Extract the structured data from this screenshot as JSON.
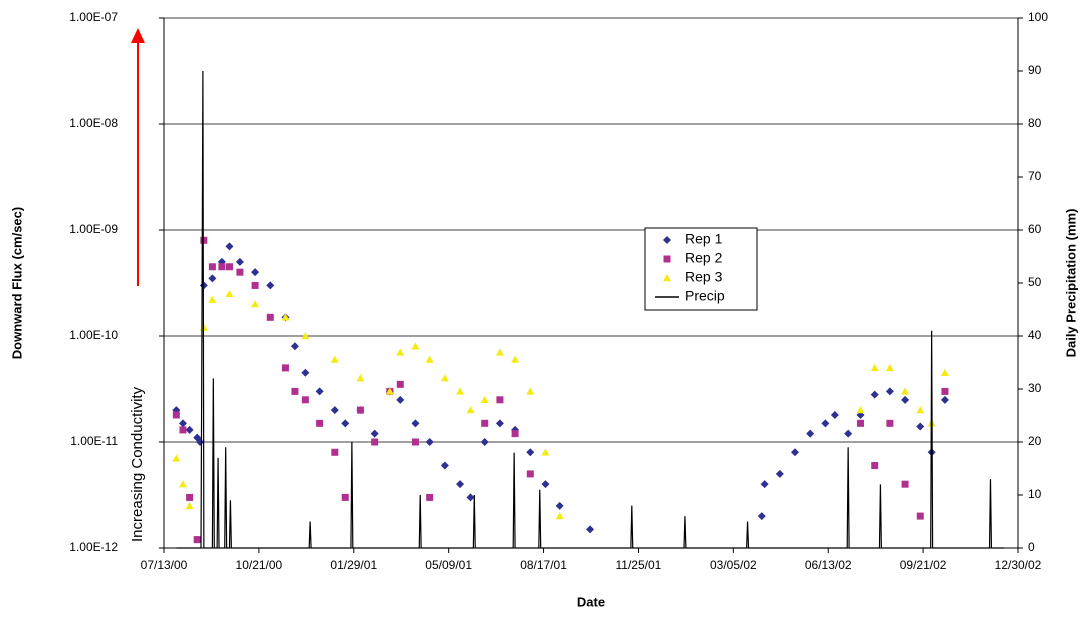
{
  "chart_data": {
    "type": "scatter",
    "xlabel": "Date",
    "ylabel": "Downward Flux (cm/sec)",
    "y2label": "Daily Precipitation (mm)",
    "annotation": {
      "text": "Increasing Conductivity",
      "color": "#ff0000"
    },
    "ylog": true,
    "grid": true,
    "legend": "center",
    "xlim": [
      "2000-07-13",
      "2002-12-30"
    ],
    "xticks": [
      {
        "value": "2000-07-13",
        "label": "07/13/00"
      },
      {
        "value": "2000-10-21",
        "label": "10/21/00"
      },
      {
        "value": "2001-01-29",
        "label": "01/29/01"
      },
      {
        "value": "2001-05-09",
        "label": "05/09/01"
      },
      {
        "value": "2001-08-17",
        "label": "08/17/01"
      },
      {
        "value": "2001-11-25",
        "label": "11/25/01"
      },
      {
        "value": "2002-03-05",
        "label": "03/05/02"
      },
      {
        "value": "2002-06-13",
        "label": "06/13/02"
      },
      {
        "value": "2002-09-21",
        "label": "09/21/02"
      },
      {
        "value": "2002-12-30",
        "label": "12/30/02"
      }
    ],
    "ylim": [
      1e-12,
      1e-07
    ],
    "yticks": [
      {
        "value": 1e-12,
        "label": "1.00E-12"
      },
      {
        "value": 1e-11,
        "label": "1.00E-11"
      },
      {
        "value": 1e-10,
        "label": "1.00E-10"
      },
      {
        "value": 1e-09,
        "label": "1.00E-09"
      },
      {
        "value": 1e-08,
        "label": "1.00E-08"
      },
      {
        "value": 1e-07,
        "label": "1.00E-07"
      }
    ],
    "y2lim": [
      0,
      100
    ],
    "y2ticks": [
      0,
      10,
      20,
      30,
      40,
      50,
      60,
      70,
      80,
      90,
      100
    ],
    "series": [
      {
        "name": "Rep 1",
        "color": "#2e3192",
        "marker": "diamond",
        "x": [
          "2000-07-26",
          "2000-08-02",
          "2000-08-09",
          "2000-08-17",
          "2000-08-20",
          "2000-08-24",
          "2000-09-02",
          "2000-09-12",
          "2000-09-20",
          "2000-10-01",
          "2000-10-17",
          "2000-11-02",
          "2000-11-18",
          "2000-11-28",
          "2000-12-09",
          "2000-12-24",
          "2001-01-09",
          "2001-01-20",
          "2001-02-05",
          "2001-02-20",
          "2001-03-08",
          "2001-03-19",
          "2001-04-04",
          "2001-04-19",
          "2001-05-05",
          "2001-05-21",
          "2001-06-01",
          "2001-06-16",
          "2001-07-02",
          "2001-07-18",
          "2001-08-03",
          "2001-08-19",
          "2001-09-03",
          "2001-10-05",
          "2002-04-04",
          "2002-04-07",
          "2002-04-23",
          "2002-05-09",
          "2002-05-25",
          "2002-06-10",
          "2002-06-20",
          "2002-07-04",
          "2002-07-17",
          "2002-08-01",
          "2002-08-17",
          "2002-09-02",
          "2002-09-18",
          "2002-09-30",
          "2002-10-14"
        ],
        "values": [
          2e-11,
          1.5e-11,
          1.3e-11,
          1.1e-11,
          1e-11,
          3e-10,
          3.5e-10,
          5e-10,
          7e-10,
          5e-10,
          4e-10,
          3e-10,
          1.5e-10,
          8e-11,
          4.5e-11,
          3e-11,
          2e-11,
          1.5e-11,
          2e-11,
          1.2e-11,
          3e-11,
          2.5e-11,
          1.5e-11,
          1e-11,
          6e-12,
          4e-12,
          3e-12,
          1e-11,
          1.5e-11,
          1.3e-11,
          8e-12,
          4e-12,
          2.5e-12,
          1.5e-12,
          2e-12,
          4e-12,
          5e-12,
          8e-12,
          1.2e-11,
          1.5e-11,
          1.8e-11,
          1.2e-11,
          1.8e-11,
          2.8e-11,
          3e-11,
          2.5e-11,
          1.4e-11,
          8e-12,
          2.5e-11
        ]
      },
      {
        "name": "Rep 2",
        "color": "#b0308f",
        "marker": "square",
        "x": [
          "2000-07-26",
          "2000-08-02",
          "2000-08-09",
          "2000-08-17",
          "2000-08-24",
          "2000-09-02",
          "2000-09-12",
          "2000-09-20",
          "2000-10-01",
          "2000-10-17",
          "2000-11-02",
          "2000-11-18",
          "2000-11-28",
          "2000-12-09",
          "2000-12-24",
          "2001-01-09",
          "2001-01-20",
          "2001-02-05",
          "2001-02-20",
          "2001-03-08",
          "2001-03-19",
          "2001-04-04",
          "2001-04-19",
          "2001-06-16",
          "2001-07-02",
          "2001-07-18",
          "2001-08-03",
          "2002-07-17",
          "2002-08-01",
          "2002-08-17",
          "2002-09-02",
          "2002-09-18",
          "2002-10-14"
        ],
        "values": [
          1.8e-11,
          1.3e-11,
          3e-12,
          1.2e-12,
          8e-10,
          4.5e-10,
          4.5e-10,
          4.5e-10,
          4e-10,
          3e-10,
          1.5e-10,
          5e-11,
          3e-11,
          2.5e-11,
          1.5e-11,
          8e-12,
          3e-12,
          2e-11,
          1e-11,
          3e-11,
          3.5e-11,
          1e-11,
          3e-12,
          1.5e-11,
          2.5e-11,
          1.2e-11,
          5e-12,
          1.5e-11,
          6e-12,
          1.5e-11,
          4e-12,
          2e-12,
          3e-11
        ]
      },
      {
        "name": "Rep 3",
        "color": "#f5ea14",
        "marker": "triangle",
        "x": [
          "2000-07-26",
          "2000-08-02",
          "2000-08-09",
          "2000-08-24",
          "2000-09-02",
          "2000-09-20",
          "2000-10-17",
          "2000-11-18",
          "2000-12-09",
          "2001-01-09",
          "2001-02-05",
          "2001-03-08",
          "2001-03-19",
          "2001-04-04",
          "2001-04-19",
          "2001-05-05",
          "2001-05-21",
          "2001-06-01",
          "2001-06-16",
          "2001-07-02",
          "2001-07-18",
          "2001-08-03",
          "2001-08-19",
          "2001-09-03",
          "2002-07-17",
          "2002-08-01",
          "2002-08-17",
          "2002-09-02",
          "2002-09-18",
          "2002-09-30",
          "2002-10-14"
        ],
        "values": [
          7e-12,
          4e-12,
          2.5e-12,
          1.2e-10,
          2.2e-10,
          2.5e-10,
          2e-10,
          1.5e-10,
          1e-10,
          6e-11,
          4e-11,
          3e-11,
          7e-11,
          8e-11,
          6e-11,
          4e-11,
          3e-11,
          2e-11,
          2.5e-11,
          7e-11,
          6e-11,
          3e-11,
          8e-12,
          2e-12,
          2e-11,
          5e-11,
          5e-11,
          3e-11,
          2e-11,
          1.5e-11,
          4.5e-11
        ]
      },
      {
        "name": "Precip",
        "color": "#000000",
        "marker": "line",
        "axis": "y2",
        "x": [
          "2000-07-26",
          "2000-08-21",
          "2000-08-22",
          "2000-08-23",
          "2000-08-24",
          "2000-09-02",
          "2000-09-03",
          "2000-09-04",
          "2000-09-07",
          "2000-09-08",
          "2000-09-09",
          "2000-09-15",
          "2000-09-16",
          "2000-09-17",
          "2000-09-20",
          "2000-09-21",
          "2000-09-22",
          "2000-12-13",
          "2000-12-14",
          "2000-12-15",
          "2001-01-26",
          "2001-01-27",
          "2001-01-28",
          "2001-04-08",
          "2001-04-09",
          "2001-04-10",
          "2001-06-04",
          "2001-06-05",
          "2001-06-06",
          "2001-07-16",
          "2001-07-17",
          "2001-07-18",
          "2001-08-12",
          "2001-08-13",
          "2001-08-14",
          "2001-11-17",
          "2001-11-18",
          "2001-11-19",
          "2002-01-12",
          "2002-01-13",
          "2002-01-14",
          "2002-03-19",
          "2002-03-20",
          "2002-03-21",
          "2002-07-03",
          "2002-07-04",
          "2002-07-05",
          "2002-08-06",
          "2002-08-07",
          "2002-08-08",
          "2002-09-29",
          "2002-09-30",
          "2002-10-01",
          "2002-11-30",
          "2002-12-01",
          "2002-12-02",
          "2002-12-15"
        ],
        "values": [
          0,
          0,
          42,
          90,
          0,
          0,
          32,
          0,
          0,
          17,
          0,
          0,
          19,
          0,
          0,
          9,
          0,
          0,
          5,
          0,
          0,
          20,
          0,
          0,
          10,
          0,
          0,
          10,
          0,
          0,
          18,
          0,
          0,
          11,
          0,
          0,
          8,
          0,
          0,
          6,
          0,
          0,
          5,
          0,
          0,
          19,
          0,
          0,
          12,
          0,
          0,
          41,
          0,
          0,
          13,
          0,
          0
        ]
      }
    ]
  }
}
